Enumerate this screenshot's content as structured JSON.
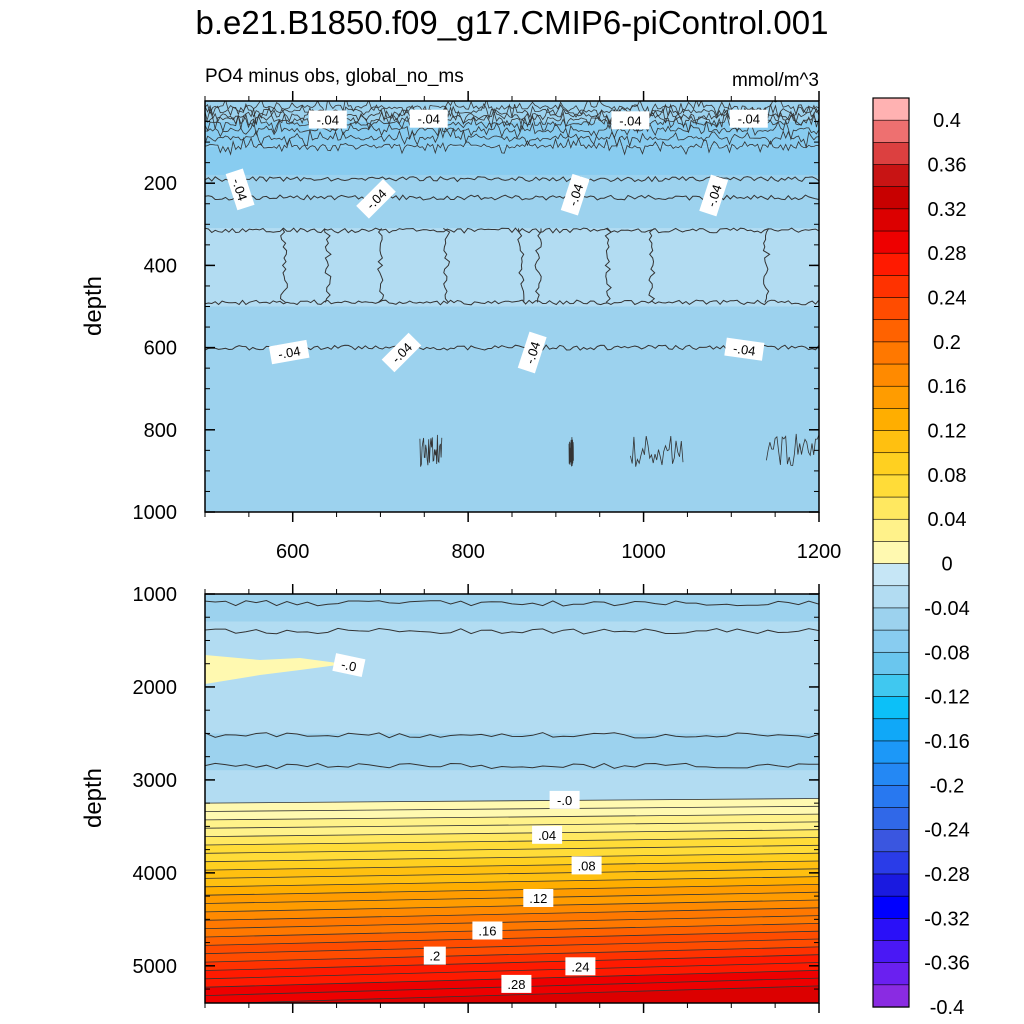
{
  "chart_data": {
    "title": "b.e21.B1850.f09_g17.CMIP6-piControl.001",
    "subtitle_left": "PO4 minus obs, global_no_ms",
    "units": "mmol/m^3",
    "type": "heatmap",
    "colorbar": {
      "levels": [
        -0.4,
        -0.38,
        -0.36,
        -0.34,
        -0.32,
        -0.3,
        -0.28,
        -0.26,
        -0.24,
        -0.22,
        -0.2,
        -0.18,
        -0.16,
        -0.14,
        -0.12,
        -0.1,
        -0.08,
        -0.06,
        -0.04,
        -0.02,
        0,
        0.02,
        0.04,
        0.06,
        0.08,
        0.1,
        0.12,
        0.14,
        0.16,
        0.18,
        0.2,
        0.22,
        0.24,
        0.26,
        0.28,
        0.3,
        0.32,
        0.34,
        0.36,
        0.38,
        0.4
      ],
      "labels": [
        "0.4",
        "0.36",
        "0.32",
        "0.28",
        "0.24",
        "0.2",
        "0.16",
        "0.12",
        "0.08",
        "0.04",
        "0",
        "-0.04",
        "-0.08",
        "-0.12",
        "-0.16",
        "-0.2",
        "-0.24",
        "-0.28",
        "-0.32",
        "-0.36",
        "-0.4"
      ],
      "colors": [
        "#8a2be2",
        "#6a20f0",
        "#4a18f5",
        "#2a10f8",
        "#0000ff",
        "#1a1ae0",
        "#2a3ce8",
        "#3a56e0",
        "#3068e8",
        "#2878f0",
        "#2488f4",
        "#1c98f8",
        "#10a8f8",
        "#0cc0f8",
        "#40c8f0",
        "#6ac6ee",
        "#88ccf0",
        "#9cd2ee",
        "#b2dcf2",
        "#c6e6f6",
        "#fff9b0",
        "#fff28a",
        "#ffe860",
        "#ffdc38",
        "#ffd020",
        "#ffc010",
        "#ffae00",
        "#ff9c00",
        "#ff8a00",
        "#ff7800",
        "#ff6200",
        "#ff4c00",
        "#ff3200",
        "#ff1a00",
        "#ee0000",
        "#dc0000",
        "#c80000",
        "#c81414",
        "#dc4040",
        "#ee7070",
        "#ffb2b2"
      ]
    },
    "panels": [
      {
        "ylabel": "depth",
        "ylim": [
          1000,
          0
        ],
        "xlim": [
          500,
          1200
        ],
        "xticks": [
          600,
          800,
          1000,
          1200
        ],
        "xtick_labels": [
          "600",
          "800",
          "1000",
          "1200"
        ],
        "yticks": [
          200,
          400,
          600,
          800,
          1000
        ],
        "ytick_labels": [
          "200",
          "400",
          "600",
          "800",
          "1000"
        ],
        "bands": [
          {
            "top": 0,
            "bottom": 50,
            "value": -0.05
          },
          {
            "top": 50,
            "bottom": 110,
            "value": -0.07
          },
          {
            "top": 110,
            "bottom": 180,
            "value": -0.07
          },
          {
            "top": 180,
            "bottom": 230,
            "value": -0.05
          },
          {
            "top": 230,
            "bottom": 310,
            "value": -0.05
          },
          {
            "top": 310,
            "bottom": 500,
            "value": -0.03
          },
          {
            "top": 500,
            "bottom": 600,
            "value": -0.05
          },
          {
            "top": 600,
            "bottom": 1000,
            "value": -0.05
          }
        ],
        "contour_labels": [
          {
            "text": "-.04",
            "x": 640,
            "y": 45,
            "rot": 0
          },
          {
            "text": "-.04",
            "x": 755,
            "y": 43,
            "rot": 0
          },
          {
            "text": "-.04",
            "x": 985,
            "y": 47,
            "rot": 0
          },
          {
            "text": "-.04",
            "x": 1120,
            "y": 43,
            "rot": 0
          },
          {
            "text": "-.04",
            "x": 540,
            "y": 215,
            "rot": 72
          },
          {
            "text": "-.04",
            "x": 695,
            "y": 238,
            "rot": -45
          },
          {
            "text": "-.04",
            "x": 922,
            "y": 228,
            "rot": -72
          },
          {
            "text": "-.04",
            "x": 1080,
            "y": 230,
            "rot": -72
          },
          {
            "text": "-.04",
            "x": 596,
            "y": 611,
            "rot": -10
          },
          {
            "text": "-.04",
            "x": 724,
            "y": 612,
            "rot": -45
          },
          {
            "text": "-.04",
            "x": 873,
            "y": 612,
            "rot": -72
          },
          {
            "text": "-.04",
            "x": 1115,
            "y": 604,
            "rot": 8
          }
        ]
      },
      {
        "ylabel": "depth",
        "ylim": [
          5400,
          1000
        ],
        "xlim": [
          500,
          1200
        ],
        "yticks": [
          1000,
          2000,
          3000,
          4000,
          5000
        ],
        "ytick_labels": [
          "1000",
          "2000",
          "3000",
          "4000",
          "5000"
        ],
        "contour_labels": [
          {
            "text": "-.0",
            "x": 664,
            "y": 1765,
            "rot": 12
          },
          {
            "text": "-.0",
            "x": 910,
            "y": 3215,
            "rot": 0
          },
          {
            "text": ".04",
            "x": 890,
            "y": 3590,
            "rot": 0
          },
          {
            "text": ".08",
            "x": 935,
            "y": 3920,
            "rot": 0
          },
          {
            "text": ".12",
            "x": 880,
            "y": 4270,
            "rot": 0
          },
          {
            "text": ".16",
            "x": 822,
            "y": 4620,
            "rot": 0
          },
          {
            "text": ".2",
            "x": 762,
            "y": 4890,
            "rot": 0
          },
          {
            "text": ".24",
            "x": 928,
            "y": 5005,
            "rot": 0
          },
          {
            "text": ".28",
            "x": 855,
            "y": 5195,
            "rot": 0
          }
        ]
      }
    ]
  }
}
